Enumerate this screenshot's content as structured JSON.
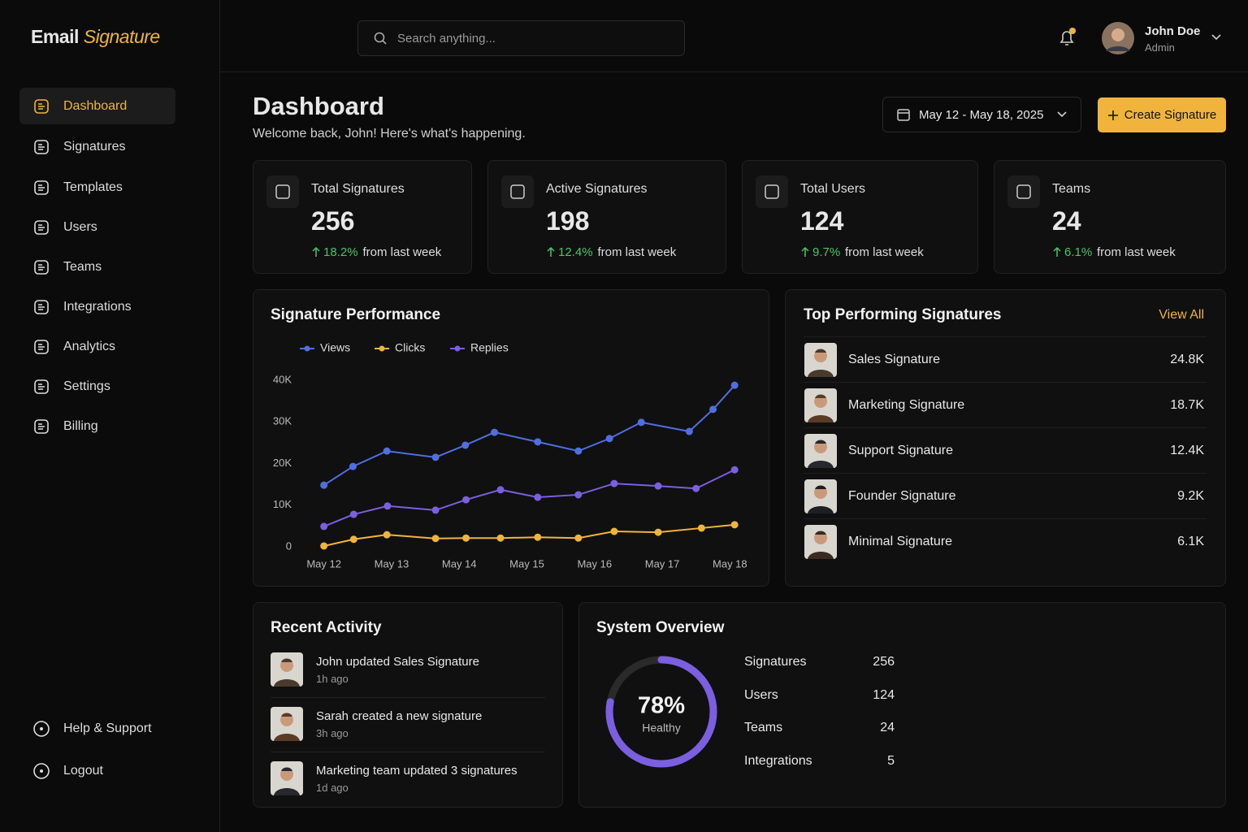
{
  "brand": {
    "name": "Email",
    "accent": "Signature"
  },
  "nav": [
    "Dashboard",
    "Signatures",
    "Templates",
    "Users",
    "Teams",
    "Integrations",
    "Analytics",
    "Settings",
    "Billing"
  ],
  "nav_footer": [
    "Help & Support",
    "Logout"
  ],
  "search_placeholder": "Search anything...",
  "user": {
    "name": "John Doe",
    "role": "Admin"
  },
  "page": {
    "title": "Dashboard",
    "subtitle": "Welcome back, John! Here's what's happening.",
    "date_range": "May 12 - May 18, 2025",
    "create_button": "Create Signature"
  },
  "stats": [
    {
      "label": "Total Signatures",
      "value": "256",
      "change": "18.2%",
      "note": "from last week"
    },
    {
      "label": "Active Signatures",
      "value": "198",
      "change": "12.4%",
      "note": "from last week"
    },
    {
      "label": "Total Users",
      "value": "124",
      "change": "9.7%",
      "note": "from last week"
    },
    {
      "label": "Teams",
      "value": "24",
      "change": "6.1%",
      "note": "from last week"
    }
  ],
  "chart_data": {
    "type": "line",
    "title": "Signature Performance",
    "xlim": [
      -0.2,
      6.2
    ],
    "xticks": [
      {
        "value": 0,
        "label": "May 12"
      },
      {
        "value": 1,
        "label": "May 13"
      },
      {
        "value": 2,
        "label": "May 14"
      },
      {
        "value": 3,
        "label": "May 15"
      },
      {
        "value": 4,
        "label": "May 16"
      },
      {
        "value": 5,
        "label": "May 17"
      },
      {
        "value": 6,
        "label": "May 18"
      }
    ],
    "ylim": [
      0,
      40000
    ],
    "yticks": [
      0,
      {
        "value": 10000,
        "label": "10K"
      },
      {
        "value": 20000,
        "label": "20K"
      },
      {
        "value": 30000,
        "label": "30K"
      },
      {
        "value": 40000,
        "label": "40K"
      }
    ],
    "grid": false,
    "series": [
      {
        "name": "Views",
        "color": "#4f6fe0",
        "x": [
          0,
          0.43,
          0.93,
          1.65,
          2.09,
          2.52,
          3.16,
          3.76,
          4.22,
          4.69,
          5.4,
          5.75,
          6.07
        ],
        "values": [
          14800,
          19300,
          23000,
          21500,
          24400,
          27500,
          25200,
          23000,
          26000,
          29900,
          27700,
          33000,
          38800
        ]
      },
      {
        "name": "Clicks",
        "color": "#f0b43c",
        "x": [
          0,
          0.44,
          0.93,
          1.65,
          2.1,
          2.61,
          3.16,
          3.76,
          4.29,
          4.94,
          5.58,
          6.07
        ],
        "values": [
          200,
          1800,
          2900,
          2000,
          2100,
          2100,
          2300,
          2100,
          3700,
          3500,
          4500,
          5300
        ]
      },
      {
        "name": "Replies",
        "color": "#7b5fe0",
        "x": [
          0,
          0.44,
          0.94,
          1.65,
          2.1,
          2.61,
          3.16,
          3.76,
          4.29,
          4.94,
          5.5,
          6.07
        ],
        "values": [
          4900,
          7800,
          9800,
          8800,
          11300,
          13700,
          11900,
          12500,
          15200,
          14600,
          14000,
          18500
        ]
      }
    ]
  },
  "top": {
    "title": "Top Performing Signatures",
    "link": "View All",
    "items": [
      {
        "name": "Sales Signature",
        "value": "24.8K"
      },
      {
        "name": "Marketing Signature",
        "value": "18.7K"
      },
      {
        "name": "Support Signature",
        "value": "12.4K"
      },
      {
        "name": "Founder Signature",
        "value": "9.2K"
      },
      {
        "name": "Minimal Signature",
        "value": "6.1K"
      }
    ]
  },
  "activity": {
    "title": "Recent Activity",
    "items": [
      {
        "text": "John updated Sales Signature",
        "time": "1h ago"
      },
      {
        "text": "Sarah created a new signature",
        "time": "3h ago"
      },
      {
        "text": "Marketing team updated 3 signatures",
        "time": "1d ago"
      }
    ]
  },
  "overview": {
    "title": "System Overview",
    "health": {
      "value": 78,
      "label": "78%",
      "caption": "Healthy"
    },
    "rows": [
      {
        "label": "Signatures",
        "value": "256"
      },
      {
        "label": "Users",
        "value": "124"
      },
      {
        "label": "Teams",
        "value": "24"
      },
      {
        "label": "Integrations",
        "value": "5"
      }
    ]
  }
}
